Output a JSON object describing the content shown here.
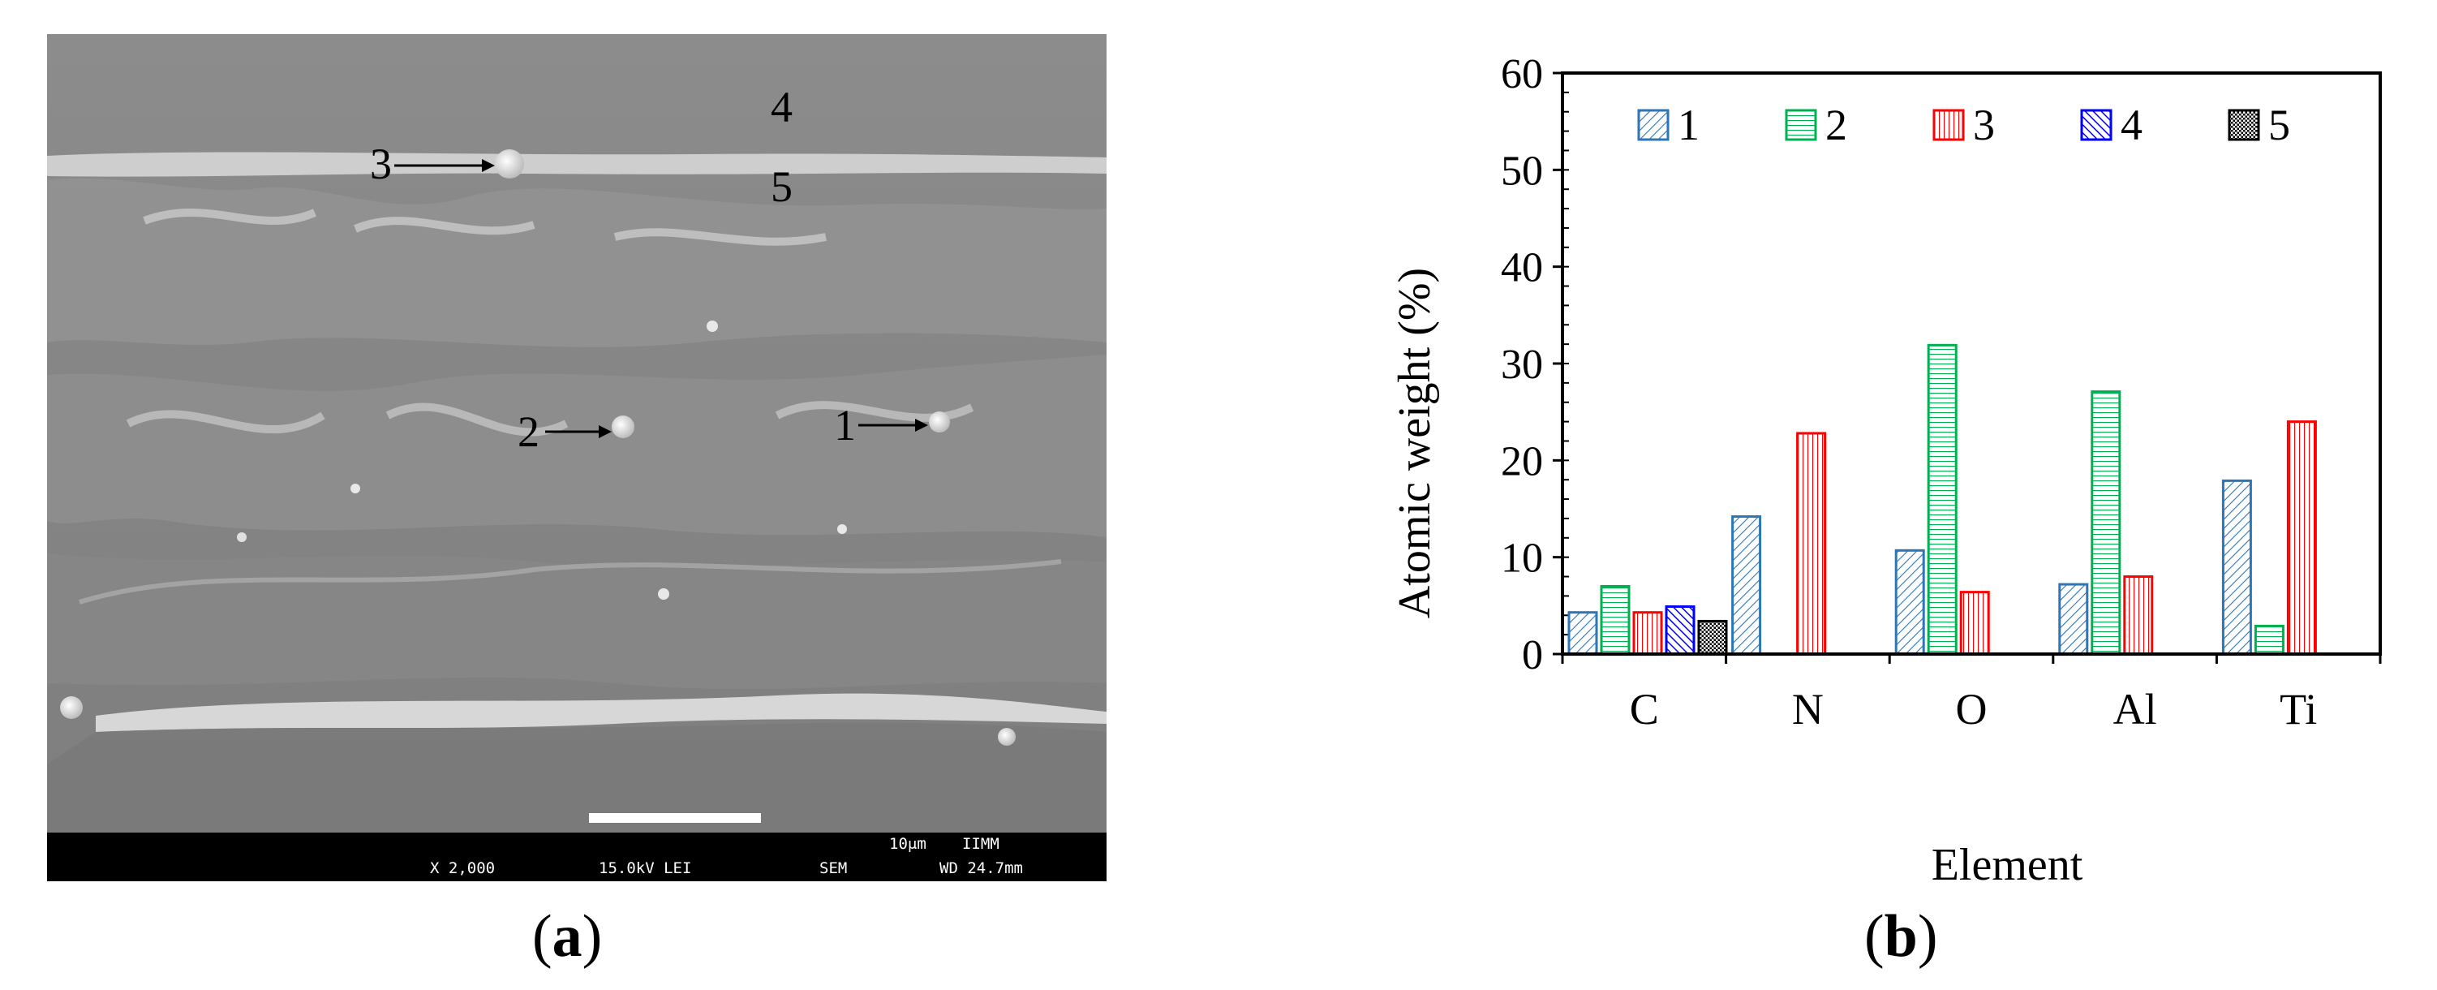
{
  "panel_a": {
    "label_open": "(",
    "label_letter": "a",
    "label_close": ")",
    "markers": [
      "1",
      "2",
      "3",
      "4",
      "5"
    ],
    "info_bar": {
      "magnification": "X 2,000",
      "voltage": "15.0kV LEI",
      "mode": "SEM",
      "working_distance": "WD 24.7mm",
      "scale_text": "10μm",
      "lab": "IIMM"
    }
  },
  "panel_b": {
    "label_open": "(",
    "label_letter": "b",
    "label_close": ")"
  },
  "colors": {
    "series_1": "#2e75b6",
    "series_2": "#00b050",
    "series_3": "#ff0000",
    "series_4": "#0000ff",
    "series_5": "#000000"
  },
  "chart_data": {
    "type": "bar",
    "xlabel": "Element",
    "ylabel": "Atomic weight (%)",
    "categories": [
      "C",
      "N",
      "O",
      "Al",
      "Ti"
    ],
    "ylim": [
      0,
      60
    ],
    "yticks": [
      0,
      10,
      20,
      30,
      40,
      50,
      60
    ],
    "legend_position": "top",
    "series": [
      {
        "name": "1",
        "values": [
          4.3,
          14.2,
          10.7,
          7.2,
          17.9
        ]
      },
      {
        "name": "2",
        "values": [
          7.0,
          0,
          31.9,
          27.1,
          2.9
        ]
      },
      {
        "name": "3",
        "values": [
          4.3,
          22.8,
          6.4,
          8.0,
          24.0
        ]
      },
      {
        "name": "4",
        "values": [
          4.9,
          0,
          0,
          0,
          0
        ]
      },
      {
        "name": "5",
        "values": [
          3.4,
          0,
          0,
          0,
          0
        ]
      }
    ]
  }
}
